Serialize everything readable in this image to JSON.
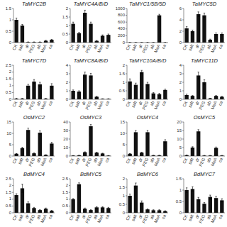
{
  "chart_data": [
    {
      "type": "bar",
      "title": "TaMYC2B",
      "categories": [
        "CK",
        "salt",
        "dr",
        "PEG",
        "ab",
        "MeA",
        "ca"
      ],
      "values": [
        1.0,
        0.75,
        0.02,
        0.02,
        0.02,
        0.08,
        0.12
      ],
      "errors": [
        0.08,
        0.05,
        0.01,
        0.01,
        0.01,
        0.02,
        0.02
      ],
      "color": "#111111",
      "ylim": [
        0,
        1.5
      ],
      "yticks": [
        0,
        0.5,
        1,
        1.5
      ]
    },
    {
      "type": "bar",
      "title": "TaMYC4A/B/D",
      "categories": [
        "CK",
        "salt",
        "dr",
        "PEG",
        "ab",
        "MeA",
        "ca"
      ],
      "values": [
        1.1,
        0.55,
        1.75,
        1.1,
        0.1,
        0.4,
        0.45
      ],
      "errors": [
        0.1,
        0.05,
        0.15,
        0.1,
        0.02,
        0.05,
        0.05
      ],
      "color": "#111111",
      "ylim": [
        0,
        2
      ],
      "yticks": [
        0,
        0.5,
        1,
        1.5,
        2
      ]
    },
    {
      "type": "bar",
      "title": "TaMYC1/5B/5D",
      "categories": [
        "CK",
        "salt",
        "dr",
        "PEG",
        "ab",
        "MeA",
        "ca"
      ],
      "values": [
        5,
        5,
        5,
        5,
        5,
        800,
        5
      ],
      "errors": [
        2,
        2,
        2,
        2,
        2,
        30,
        2
      ],
      "color": "#111111",
      "ylim": [
        0,
        1000
      ],
      "yticks": [
        0,
        200,
        400,
        600,
        800,
        1000
      ]
    },
    {
      "type": "bar",
      "title": "TaMYC5D",
      "categories": [
        "CK",
        "salt",
        "dr",
        "PEG",
        "ab",
        "MeA",
        "ca"
      ],
      "values": [
        2.5,
        2.0,
        5.0,
        4.8,
        0.5,
        1.5,
        1.5
      ],
      "errors": [
        0.3,
        0.2,
        0.4,
        0.4,
        0.1,
        0.2,
        0.2
      ],
      "color": "#111111",
      "ylim": [
        0,
        6
      ],
      "yticks": [
        0,
        2,
        4,
        6
      ]
    },
    {
      "type": "bar",
      "title": "TaMYC7D",
      "categories": [
        "CK",
        "salt",
        "dr",
        "PEG",
        "ab",
        "MeA",
        "ca"
      ],
      "values": [
        0.05,
        0.05,
        1.0,
        1.3,
        1.1,
        0.05,
        1.0
      ],
      "errors": [
        0.02,
        0.02,
        0.1,
        0.15,
        0.15,
        0.02,
        0.15
      ],
      "color": "#111111",
      "ylim": [
        0,
        2.5
      ],
      "yticks": [
        0,
        0.5,
        1,
        1.5,
        2,
        2.5
      ]
    },
    {
      "type": "bar",
      "title": "TaMYC8A/B/D",
      "categories": [
        "CK",
        "salt",
        "dr",
        "PEG",
        "ab",
        "MeA",
        "ca"
      ],
      "values": [
        1.0,
        0.9,
        2.9,
        2.8,
        0.3,
        0.05,
        0.05
      ],
      "errors": [
        0.1,
        0.1,
        0.3,
        0.25,
        0.05,
        0.02,
        0.02
      ],
      "color": "#111111",
      "ylim": [
        0,
        4
      ],
      "yticks": [
        0,
        1,
        2,
        3,
        4
      ]
    },
    {
      "type": "bar",
      "title": "TaMYC10A/B/D",
      "categories": [
        "CK",
        "salt",
        "dr",
        "PEG",
        "ab",
        "MeA",
        "ca"
      ],
      "values": [
        1.05,
        0.85,
        1.6,
        0.9,
        0.35,
        0.3,
        0.55
      ],
      "errors": [
        0.15,
        0.1,
        0.1,
        0.1,
        0.05,
        0.05,
        0.05
      ],
      "color": "#111111",
      "ylim": [
        0,
        2
      ],
      "yticks": [
        0,
        0.5,
        1,
        1.5,
        2
      ]
    },
    {
      "type": "bar",
      "title": "TaMYC11D",
      "categories": [
        "CK",
        "salt",
        "dr",
        "PEG",
        "ab",
        "MeA",
        "ca"
      ],
      "values": [
        0.5,
        0.4,
        2.8,
        2.0,
        0.1,
        0.4,
        0.3
      ],
      "errors": [
        0.1,
        0.05,
        0.4,
        0.3,
        0.02,
        0.05,
        0.05
      ],
      "color": "#111111",
      "ylim": [
        0,
        4
      ],
      "yticks": [
        0,
        1,
        2,
        3,
        4
      ]
    },
    {
      "type": "bar",
      "title": "OsMYC2",
      "categories": [
        "CK",
        "salt",
        "dr",
        "PEG",
        "ab",
        "MeA",
        "ca"
      ],
      "values": [
        1.0,
        3.5,
        11.5,
        1.2,
        10.3,
        0.5,
        5.5
      ],
      "errors": [
        0.1,
        0.4,
        0.8,
        0.2,
        0.8,
        0.1,
        0.6
      ],
      "color": "#111111",
      "ylim": [
        0,
        15
      ],
      "yticks": [
        0,
        5,
        10,
        15
      ]
    },
    {
      "type": "bar",
      "title": "OsMYC3",
      "categories": [
        "CK",
        "salt",
        "dr",
        "PEG",
        "ab",
        "MeA",
        "ca"
      ],
      "values": [
        0.5,
        0.8,
        4.5,
        35.0,
        4.0,
        3.0,
        0.5
      ],
      "errors": [
        0.05,
        0.1,
        0.5,
        2.0,
        0.5,
        0.4,
        0.05
      ],
      "color": "#111111",
      "ylim": [
        0,
        40
      ],
      "yticks": [
        0,
        10,
        20,
        30,
        40
      ]
    },
    {
      "type": "bar",
      "title": "OsMYC4",
      "categories": [
        "CK",
        "salt",
        "dr",
        "PEG",
        "ab",
        "MeA",
        "ca"
      ],
      "values": [
        1.0,
        10.5,
        1.5,
        10.5,
        0.3,
        0.3,
        6.5
      ],
      "errors": [
        0.1,
        0.8,
        0.2,
        0.8,
        0.05,
        0.05,
        0.7
      ],
      "color": "#111111",
      "ylim": [
        0,
        15
      ],
      "yticks": [
        0,
        5,
        10,
        15
      ]
    },
    {
      "type": "bar",
      "title": "OsMYC5",
      "categories": [
        "CK",
        "salt",
        "dr",
        "PEG",
        "ab",
        "MeA",
        "ca"
      ],
      "values": [
        0.5,
        5.0,
        14.5,
        0.3,
        0.3,
        4.8,
        0.3
      ],
      "errors": [
        0.05,
        0.5,
        1.0,
        0.05,
        0.05,
        0.5,
        0.05
      ],
      "color": "#111111",
      "ylim": [
        0,
        20
      ],
      "yticks": [
        0,
        5,
        10,
        15,
        20
      ]
    },
    {
      "type": "bar",
      "title": "BdMYC4",
      "categories": [
        "CK",
        "salt",
        "dr",
        "PEG",
        "ab",
        "MeA",
        "ca"
      ],
      "values": [
        1.3,
        1.8,
        0.7,
        0.35,
        0.2,
        0.3,
        0.15
      ],
      "errors": [
        0.1,
        0.3,
        0.1,
        0.05,
        0.03,
        0.05,
        0.03
      ],
      "color": "#111111",
      "ylim": [
        0,
        2.5
      ],
      "yticks": [
        0,
        0.5,
        1,
        1.5,
        2,
        2.5
      ]
    },
    {
      "type": "bar",
      "title": "BdMYC5",
      "categories": [
        "CK",
        "salt",
        "dr",
        "PEG",
        "ab",
        "MeA",
        "ca"
      ],
      "values": [
        1.0,
        2.1,
        0.3,
        0.2,
        0.4,
        0.4,
        0.35
      ],
      "errors": [
        0.05,
        0.1,
        0.05,
        0.03,
        0.05,
        0.05,
        0.05
      ],
      "color": "#111111",
      "ylim": [
        0,
        2.5
      ],
      "yticks": [
        0,
        0.5,
        1,
        1.5,
        2,
        2.5
      ]
    },
    {
      "type": "bar",
      "title": "BdMYC6",
      "categories": [
        "CK",
        "salt",
        "dr",
        "PEG",
        "ab",
        "MeA",
        "ca"
      ],
      "values": [
        1.0,
        1.6,
        0.6,
        0.2,
        0.15,
        0.15,
        0.1
      ],
      "errors": [
        0.1,
        0.15,
        0.1,
        0.03,
        0.03,
        0.03,
        0.02
      ],
      "color": "#111111",
      "ylim": [
        0,
        2
      ],
      "yticks": [
        0,
        0.5,
        1,
        1.5,
        2
      ]
    },
    {
      "type": "bar",
      "title": "BdMYC7",
      "categories": [
        "CK",
        "salt",
        "dr",
        "PEG",
        "ab",
        "MeA",
        "ca"
      ],
      "values": [
        1.0,
        1.05,
        0.6,
        0.4,
        0.7,
        0.65,
        0.55
      ],
      "errors": [
        0.1,
        0.1,
        0.08,
        0.05,
        0.08,
        0.08,
        0.07
      ],
      "color": "#111111",
      "ylim": [
        0,
        1.5
      ],
      "yticks": [
        0,
        0.5,
        1,
        1.5
      ]
    }
  ]
}
